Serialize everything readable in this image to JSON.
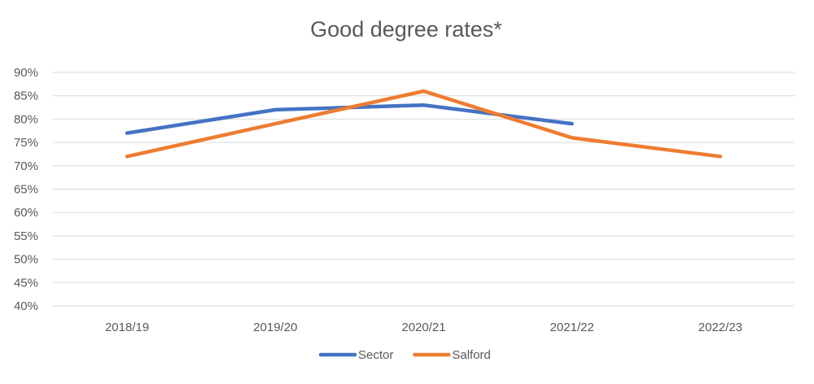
{
  "chart_data": {
    "type": "line",
    "title": "Good degree rates*",
    "xlabel": "",
    "ylabel": "",
    "categories": [
      "2018/19",
      "2019/20",
      "2020/21",
      "2021/22",
      "2022/23"
    ],
    "series": [
      {
        "name": "Sector",
        "values": [
          0.77,
          0.82,
          0.83,
          0.79,
          null
        ],
        "color": "#4472c4"
      },
      {
        "name": "Salford",
        "values": [
          0.72,
          0.79,
          0.86,
          0.76,
          0.72
        ],
        "color": "#ed7d31"
      }
    ],
    "ylim": [
      0.4,
      0.9
    ],
    "yticks": [
      "40%",
      "45%",
      "50%",
      "55%",
      "60%",
      "65%",
      "70%",
      "75%",
      "80%",
      "85%",
      "90%"
    ],
    "ytick_values": [
      0.4,
      0.45,
      0.5,
      0.55,
      0.6,
      0.65,
      0.7,
      0.75,
      0.8,
      0.85,
      0.9
    ],
    "grid": true,
    "legend_position": "bottom-center"
  }
}
